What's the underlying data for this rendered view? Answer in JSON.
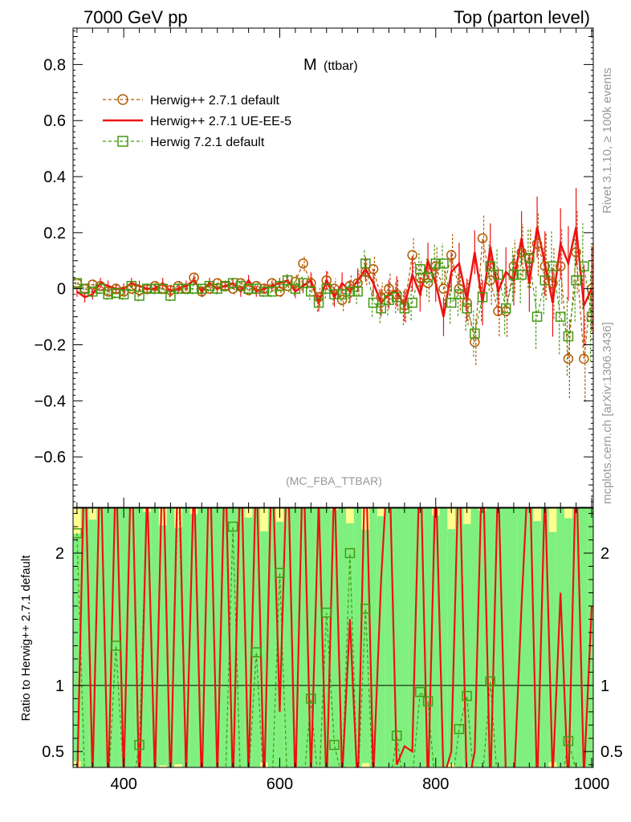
{
  "header": {
    "left": "7000 GeV pp",
    "right": "Top (parton level)"
  },
  "side_labels": {
    "rivet": "Rivet 3.1.10, ≥ 100k events",
    "mcplots": "mcplots.cern.ch [arXiv:1306.3436]"
  },
  "chart_data": {
    "type": "line",
    "title_main": "M",
    "title_sub": "(ttbar)",
    "analysis": "(MC_FBA_TTBAR)",
    "upper_panel": {
      "ylim": [
        -0.78,
        0.93
      ],
      "yticks": [
        -0.6,
        -0.4,
        -0.2,
        0,
        0.2,
        0.4,
        0.6,
        0.8
      ],
      "ytick_labels": [
        "−0.6",
        "−0.4",
        "−0.2",
        "0",
        "0.2",
        "0.4",
        "0.6",
        "0.8"
      ]
    },
    "lower_panel": {
      "ylabel": "Ratio to Herwig++ 2.7.1 default",
      "ylim": [
        0.38,
        2.34
      ],
      "yticks": [
        0.5,
        1,
        2
      ],
      "ytick_labels": [
        "0.5",
        "1",
        "2"
      ]
    },
    "xlim": [
      335,
      1002
    ],
    "xticks": [
      400,
      600,
      800,
      1000
    ],
    "xtick_labels": [
      "400",
      "600",
      "800",
      "1000"
    ],
    "legend": {
      "placement": "top-left"
    },
    "x": [
      340,
      350,
      360,
      370,
      380,
      390,
      400,
      410,
      420,
      430,
      440,
      450,
      460,
      470,
      480,
      490,
      500,
      510,
      520,
      530,
      540,
      550,
      560,
      570,
      580,
      590,
      600,
      610,
      620,
      630,
      640,
      650,
      660,
      670,
      680,
      690,
      700,
      710,
      720,
      730,
      740,
      750,
      760,
      770,
      780,
      790,
      800,
      810,
      820,
      830,
      840,
      850,
      860,
      870,
      880,
      890,
      900,
      910,
      920,
      930,
      940,
      950,
      960,
      970,
      980,
      990,
      1000
    ],
    "series": [
      {
        "name": "Herwig++ 2.7.1 default",
        "color": "#b35900",
        "style": "dashed-circle",
        "values": [
          0.02,
          0.0,
          0.015,
          0.01,
          -0.01,
          0.0,
          -0.01,
          0.0,
          -0.005,
          0.0,
          0.01,
          0.0,
          -0.005,
          0.01,
          0.0,
          0.04,
          -0.01,
          0.0,
          0.02,
          0.01,
          0.0,
          0.02,
          -0.005,
          0.01,
          0.0,
          0.02,
          -0.01,
          0.01,
          0.025,
          0.09,
          0.02,
          -0.03,
          0.03,
          0.0,
          -0.04,
          0.01,
          0.02,
          0.06,
          0.07,
          -0.03,
          0.0,
          -0.02,
          -0.06,
          0.12,
          0.04,
          0.02,
          0.08,
          0.0,
          0.12,
          0.0,
          -0.05,
          -0.19,
          0.18,
          0.03,
          -0.08,
          -0.08,
          0.08,
          0.13,
          0.11,
          0.16,
          0.08,
          0.02,
          0.08,
          -0.25,
          0.13,
          -0.25,
          0.0
        ]
      },
      {
        "name": "Herwig++ 2.7.1 UE-EE-5",
        "color": "#ee1111",
        "style": "solid",
        "values": [
          -0.01,
          -0.03,
          -0.02,
          0.02,
          0.01,
          0.0,
          0.0,
          0.02,
          0.01,
          0.0,
          0.0,
          0.02,
          -0.01,
          0.0,
          0.01,
          0.03,
          -0.01,
          0.02,
          0.0,
          0.01,
          0.02,
          -0.01,
          0.03,
          -0.01,
          0.0,
          0.01,
          0.02,
          0.03,
          -0.01,
          0.01,
          0.03,
          -0.05,
          0.03,
          -0.03,
          0.02,
          -0.01,
          0.03,
          0.07,
          0.02,
          -0.05,
          -0.02,
          -0.01,
          -0.06,
          0.05,
          -0.02,
          0.1,
          0.02,
          -0.1,
          0.06,
          0.09,
          -0.04,
          0.13,
          -0.05,
          0.15,
          -0.01,
          0.06,
          0.03,
          0.18,
          0.02,
          0.22,
          0.09,
          -0.05,
          0.16,
          0.09,
          0.22,
          -0.06,
          0.0
        ]
      },
      {
        "name": "Herwig 7.2.1 default",
        "color": "#449911",
        "style": "dashed-square",
        "values": [
          0.02,
          0.0,
          -0.01,
          0.0,
          -0.02,
          -0.015,
          -0.02,
          0.01,
          -0.025,
          0.0,
          0.0,
          0.0,
          -0.025,
          0.0,
          0.0,
          0.0,
          0.0,
          0.01,
          0.0,
          0.01,
          0.02,
          0.01,
          0.0,
          0.0,
          -0.01,
          -0.01,
          0.01,
          0.03,
          0.0,
          0.02,
          -0.01,
          -0.05,
          0.0,
          -0.02,
          -0.02,
          -0.01,
          -0.01,
          0.09,
          -0.05,
          -0.07,
          -0.04,
          -0.03,
          -0.07,
          -0.05,
          0.07,
          0.04,
          0.09,
          0.09,
          -0.05,
          -0.02,
          -0.07,
          -0.16,
          -0.03,
          0.08,
          0.05,
          -0.07,
          0.05,
          0.05,
          0.11,
          -0.1,
          0.03,
          0.08,
          -0.1,
          -0.17,
          0.03,
          0.08,
          -0.1
        ]
      }
    ],
    "ratio_series": [
      {
        "name": "Herwig++ 2.7.1 UE-EE-5",
        "values": [
          0.2,
          3.0,
          0.3,
          2.8,
          0.2,
          2.7,
          0.3,
          3.0,
          0.2,
          2.5,
          0.3,
          2.8,
          0.2,
          3.0,
          0.3,
          2.6,
          0.2,
          2.9,
          0.3,
          2.8,
          0.2,
          3.0,
          0.3,
          2.7,
          0.2,
          2.8,
          0.8,
          3.0,
          0.2,
          2.9,
          0.3,
          2.4,
          0.2,
          2.6,
          0.3,
          1.5,
          0.2,
          3.0,
          0.3,
          1.8,
          3.0,
          0.4,
          0.54,
          0.5,
          3.0,
          0.2,
          2.6,
          0.3,
          0.5,
          2.8,
          0.2,
          0.5,
          2.9,
          0.2,
          2.6,
          0.3,
          0.2,
          1.6,
          2.8,
          0.2,
          2.5,
          0.3,
          1.7,
          0.2,
          2.7,
          0.3,
          1.6
        ]
      },
      {
        "name": "Herwig 7.2.1 default",
        "values": [
          2.15,
          0.3,
          0.2,
          2.8,
          0.2,
          1.3,
          0.3,
          0.2,
          0.55,
          2.5,
          0.2,
          0.3,
          0.2,
          2.6,
          0.3,
          0.2,
          0.2,
          2.8,
          0.3,
          0.2,
          2.2,
          0.2,
          0.3,
          1.25,
          0.2,
          0.2,
          1.85,
          0.2,
          0.3,
          0.2,
          0.9,
          0.2,
          1.55,
          0.55,
          0.3,
          2.0,
          0.2,
          1.58,
          0.2,
          0.3,
          0.2,
          0.62,
          0.2,
          0.3,
          0.95,
          0.88,
          0.2,
          0.3,
          0.2,
          0.67,
          0.92,
          0.2,
          0.3,
          1.03,
          0.2,
          0.3,
          0.2,
          0.3,
          0.2,
          0.3,
          0.2,
          0.3,
          0.2,
          0.58,
          0.36,
          0.2,
          0.3
        ]
      }
    ],
    "band": {
      "name": "reference uncertainty",
      "color_inner": "#7ff07f",
      "color_outer": "#ffff90"
    }
  }
}
